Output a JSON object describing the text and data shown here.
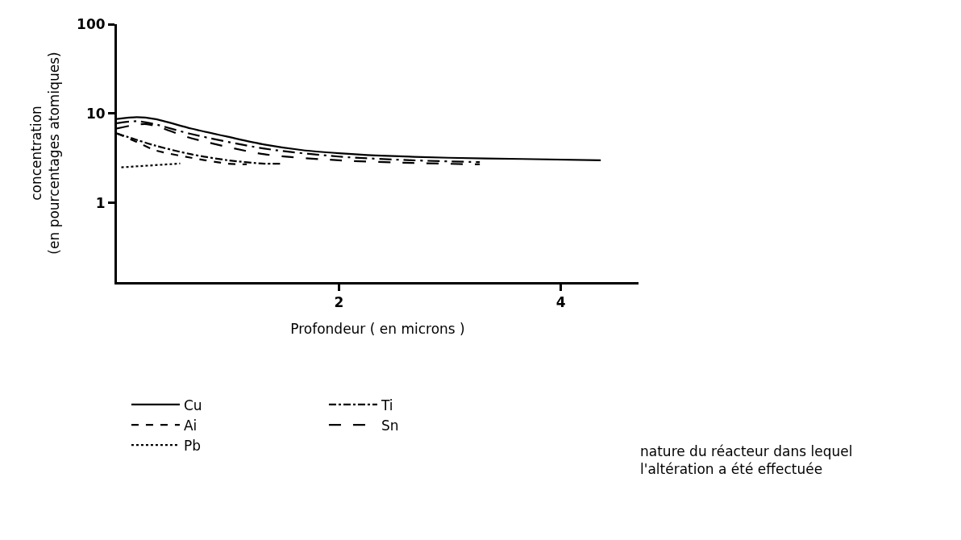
{
  "chart_data": {
    "type": "line",
    "xlabel": "Profondeur ( en microns )",
    "ylabel": "concentration\n(en pourcentages atomiques)",
    "log": "y",
    "xlim": [
      0,
      4.7
    ],
    "xticks": [
      2,
      4
    ],
    "ylim": [
      0.13,
      100
    ],
    "yticks": [
      1,
      10,
      100
    ],
    "grid": false,
    "legend": "bottom",
    "marker": "none",
    "annotations": [
      "nature du réacteur dans lequel\nl'altération a été effectuée"
    ],
    "series": [
      {
        "name": "Cu",
        "color": "#000000",
        "line_style": "solid",
        "x": [
          0,
          0.18,
          0.34,
          0.67,
          1.0,
          1.33,
          1.67,
          2.0,
          2.33,
          2.99,
          3.65,
          4.36
        ],
        "values": [
          8.7,
          9.1,
          8.7,
          6.8,
          5.5,
          4.5,
          3.9,
          3.6,
          3.4,
          3.2,
          3.1,
          3.0
        ]
      },
      {
        "name": "Ti",
        "color": "#000000",
        "line_style": "dashdot",
        "x": [
          0,
          0.34,
          0.67,
          1.0,
          1.33,
          1.48
        ],
        "values": [
          6.0,
          4.4,
          3.5,
          3.0,
          2.75,
          2.75
        ]
      },
      {
        "name": "Ai",
        "color": "#000000",
        "line_style": "dashed",
        "x": [
          0,
          0.18,
          0.34,
          0.67,
          1.0,
          1.17
        ],
        "values": [
          6.0,
          4.8,
          3.9,
          3.2,
          2.75,
          2.7
        ]
      },
      {
        "name": "Sn",
        "color": "#000000",
        "line_style": "longdash",
        "x": [
          0,
          0.27,
          0.67,
          1.33,
          2.0,
          2.66,
          3.27
        ],
        "values": [
          6.8,
          7.6,
          5.3,
          3.5,
          3.0,
          2.8,
          2.7
        ]
      },
      {
        "name": "Pb",
        "color": "#000000",
        "line_style": "dotted",
        "x": [
          0.04,
          0.57
        ],
        "values": [
          2.5,
          2.76
        ]
      },
      {
        "color": "#000000",
        "line_style": "longdashdot",
        "x": [
          0,
          0.18,
          0.34,
          0.67,
          1.33,
          2.0,
          2.66,
          3.27
        ],
        "values": [
          7.8,
          8.2,
          7.6,
          5.9,
          4.05,
          3.3,
          3.0,
          2.86
        ]
      }
    ]
  }
}
